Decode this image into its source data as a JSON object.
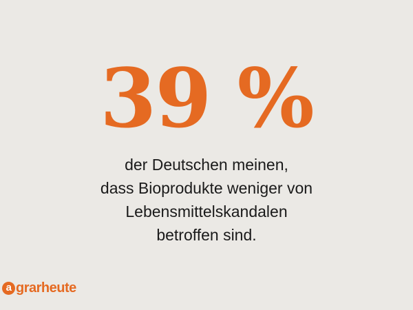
{
  "stat": {
    "value": "39 %"
  },
  "caption": {
    "lines": [
      "der Deutschen meinen,",
      "dass Bioprodukte weniger von",
      "Lebensmittelskandalen",
      "betroffen sind."
    ]
  },
  "brand": {
    "logo_text": "agrarheute",
    "logo_initial": "a",
    "logo_rest": "grarheute"
  },
  "colors": {
    "accent": "#e56a22",
    "background": "#ebe9e5",
    "text": "#1a1a1a"
  }
}
